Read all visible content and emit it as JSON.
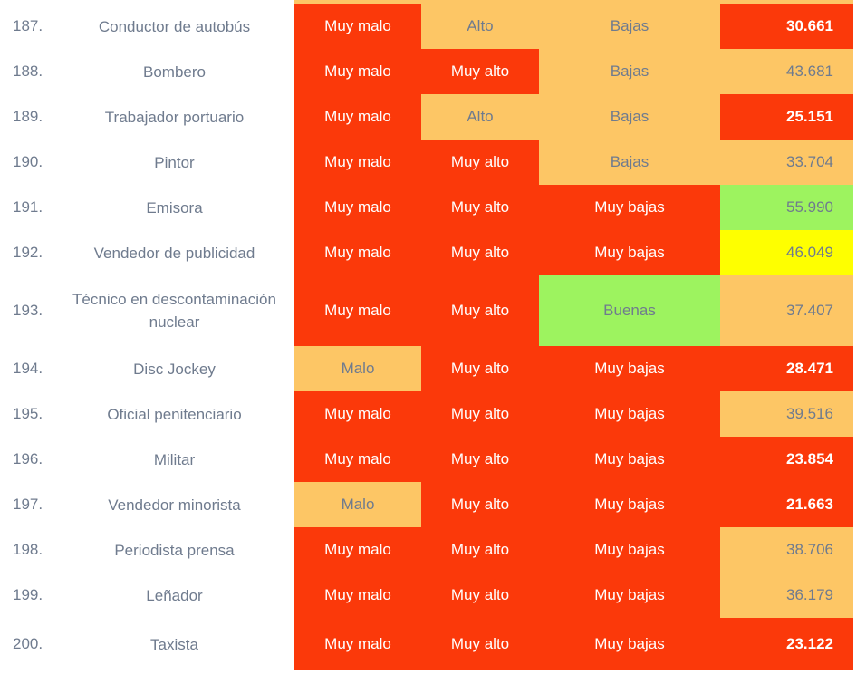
{
  "palette": {
    "red": "#fb390a",
    "orange": "#fdc665",
    "green": "#9df35f",
    "yellow": "#feff00",
    "text": "#6f7b8e"
  },
  "chart_data": {
    "type": "table",
    "rows": [
      {
        "rank": "187.",
        "occupation": "Conductor de autobús",
        "rating": {
          "label": "Muy malo",
          "bg": "red"
        },
        "stress": {
          "label": "Alto",
          "bg": "orange"
        },
        "outlook": {
          "label": "Bajas",
          "bg": "orange"
        },
        "salary": {
          "value": "30.661",
          "bg": "red"
        }
      },
      {
        "rank": "188.",
        "occupation": "Bombero",
        "rating": {
          "label": "Muy malo",
          "bg": "red"
        },
        "stress": {
          "label": "Muy alto",
          "bg": "red"
        },
        "outlook": {
          "label": "Bajas",
          "bg": "orange"
        },
        "salary": {
          "value": "43.681",
          "bg": "orange"
        }
      },
      {
        "rank": "189.",
        "occupation": "Trabajador portuario",
        "rating": {
          "label": "Muy malo",
          "bg": "red"
        },
        "stress": {
          "label": "Alto",
          "bg": "orange"
        },
        "outlook": {
          "label": "Bajas",
          "bg": "orange"
        },
        "salary": {
          "value": "25.151",
          "bg": "red"
        }
      },
      {
        "rank": "190.",
        "occupation": "Pintor",
        "rating": {
          "label": "Muy malo",
          "bg": "red"
        },
        "stress": {
          "label": "Muy alto",
          "bg": "red"
        },
        "outlook": {
          "label": "Bajas",
          "bg": "orange"
        },
        "salary": {
          "value": "33.704",
          "bg": "orange"
        }
      },
      {
        "rank": "191.",
        "occupation": "Emisora",
        "rating": {
          "label": "Muy malo",
          "bg": "red"
        },
        "stress": {
          "label": "Muy alto",
          "bg": "red"
        },
        "outlook": {
          "label": "Muy bajas",
          "bg": "red"
        },
        "salary": {
          "value": "55.990",
          "bg": "green"
        }
      },
      {
        "rank": "192.",
        "occupation": "Vendedor de publicidad",
        "rating": {
          "label": "Muy malo",
          "bg": "red"
        },
        "stress": {
          "label": "Muy alto",
          "bg": "red"
        },
        "outlook": {
          "label": "Muy bajas",
          "bg": "red"
        },
        "salary": {
          "value": "46.049",
          "bg": "yellow"
        }
      },
      {
        "rank": "193.",
        "occupation": "Técnico en descontaminación nuclear",
        "rating": {
          "label": "Muy malo",
          "bg": "red"
        },
        "stress": {
          "label": "Muy alto",
          "bg": "red"
        },
        "outlook": {
          "label": "Buenas",
          "bg": "green"
        },
        "salary": {
          "value": "37.407",
          "bg": "orange"
        }
      },
      {
        "rank": "194.",
        "occupation": "Disc Jockey",
        "rating": {
          "label": "Malo",
          "bg": "orange"
        },
        "stress": {
          "label": "Muy alto",
          "bg": "red"
        },
        "outlook": {
          "label": "Muy bajas",
          "bg": "red"
        },
        "salary": {
          "value": "28.471",
          "bg": "red"
        }
      },
      {
        "rank": "195.",
        "occupation": "Oficial penitenciario",
        "rating": {
          "label": "Muy malo",
          "bg": "red"
        },
        "stress": {
          "label": "Muy alto",
          "bg": "red"
        },
        "outlook": {
          "label": "Muy bajas",
          "bg": "red"
        },
        "salary": {
          "value": "39.516",
          "bg": "orange"
        }
      },
      {
        "rank": "196.",
        "occupation": "Militar",
        "rating": {
          "label": "Muy malo",
          "bg": "red"
        },
        "stress": {
          "label": "Muy alto",
          "bg": "red"
        },
        "outlook": {
          "label": "Muy bajas",
          "bg": "red"
        },
        "salary": {
          "value": "23.854",
          "bg": "red"
        }
      },
      {
        "rank": "197.",
        "occupation": "Vendedor minorista",
        "rating": {
          "label": "Malo",
          "bg": "orange"
        },
        "stress": {
          "label": "Muy alto",
          "bg": "red"
        },
        "outlook": {
          "label": "Muy bajas",
          "bg": "red"
        },
        "salary": {
          "value": "21.663",
          "bg": "red"
        }
      },
      {
        "rank": "198.",
        "occupation": "Periodista prensa",
        "rating": {
          "label": "Muy malo",
          "bg": "red"
        },
        "stress": {
          "label": "Muy alto",
          "bg": "red"
        },
        "outlook": {
          "label": "Muy bajas",
          "bg": "red"
        },
        "salary": {
          "value": "38.706",
          "bg": "orange"
        }
      },
      {
        "rank": "199.",
        "occupation": "Leñador",
        "rating": {
          "label": "Muy malo",
          "bg": "red"
        },
        "stress": {
          "label": "Muy alto",
          "bg": "red"
        },
        "outlook": {
          "label": "Muy bajas",
          "bg": "red"
        },
        "salary": {
          "value": "36.179",
          "bg": "orange"
        }
      },
      {
        "rank": "200.",
        "occupation": "Taxista",
        "rating": {
          "label": "Muy malo",
          "bg": "red"
        },
        "stress": {
          "label": "Muy alto",
          "bg": "red"
        },
        "outlook": {
          "label": "Muy bajas",
          "bg": "red"
        },
        "salary": {
          "value": "23.122",
          "bg": "red"
        }
      }
    ]
  }
}
